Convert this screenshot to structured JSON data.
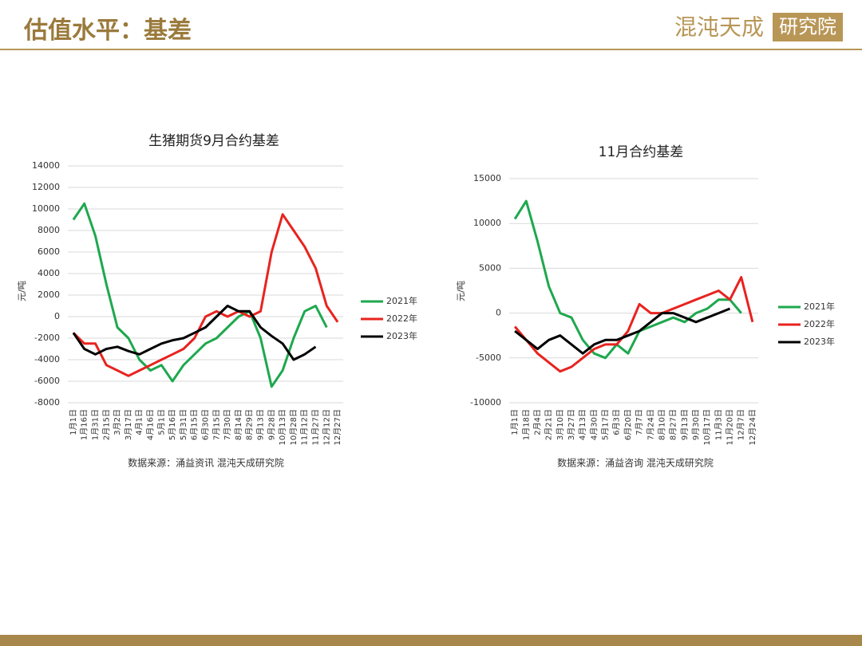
{
  "header": {
    "title": "估值水平：基差",
    "logo": [
      "混沌天成",
      "研究院"
    ]
  },
  "chart_data": [
    {
      "type": "line",
      "title": "生猪期货9月合约基差",
      "ylabel": "元/吨",
      "source": "数据来源：涌益资讯 混沌天成研究院",
      "categories": [
        "1月1日",
        "1月16日",
        "1月31日",
        "2月15日",
        "3月2日",
        "3月17日",
        "4月1日",
        "4月16日",
        "5月1日",
        "5月16日",
        "5月31日",
        "6月15日",
        "6月30日",
        "7月15日",
        "7月30日",
        "8月14日",
        "8月29日",
        "9月13日",
        "9月28日",
        "10月13日",
        "10月28日",
        "11月12日",
        "11月27日",
        "12月12日",
        "12月27日"
      ],
      "series": [
        {
          "name": "2021年",
          "color": "#1ea84e",
          "values": [
            9000,
            10500,
            7500,
            3000,
            -1000,
            -2000,
            -4000,
            -5000,
            -4500,
            -6000,
            -4500,
            -3500,
            -2500,
            -2000,
            -1000,
            0,
            500,
            -2000,
            -6500,
            -5000,
            -2000,
            500,
            1000,
            -1000,
            null
          ]
        },
        {
          "name": "2022年",
          "color": "#e8231f",
          "values": [
            -1500,
            -2500,
            -2500,
            -4500,
            -5000,
            -5500,
            -5000,
            -4500,
            -4000,
            -3500,
            -3000,
            -2000,
            0,
            500,
            0,
            500,
            0,
            500,
            6000,
            9500,
            8000,
            6500,
            4500,
            1000,
            -500
          ]
        },
        {
          "name": "2023年",
          "color": "#000000",
          "values": [
            -1500,
            -3000,
            -3500,
            -3000,
            -2800,
            -3200,
            -3500,
            -3000,
            -2500,
            -2200,
            -2000,
            -1500,
            -1000,
            0,
            1000,
            500,
            500,
            -1000,
            -1800,
            -2500,
            -4000,
            -3500,
            -2800,
            null,
            null
          ]
        }
      ],
      "ylim": [
        -8000,
        14000
      ],
      "yticks": [
        -8000,
        -6000,
        -4000,
        -2000,
        0,
        2000,
        4000,
        6000,
        8000,
        10000,
        12000,
        14000
      ],
      "grid": true,
      "legend": "right"
    },
    {
      "type": "line",
      "title": "11月合约基差",
      "ylabel": "元/吨",
      "source": "数据来源：涌益咨询 混沌天成研究院",
      "categories": [
        "1月1日",
        "1月18日",
        "2月4日",
        "2月21日",
        "3月10日",
        "3月27日",
        "4月13日",
        "4月30日",
        "5月17日",
        "6月3日",
        "6月20日",
        "7月7日",
        "7月24日",
        "8月10日",
        "8月27日",
        "9月13日",
        "9月30日",
        "10月17日",
        "11月3日",
        "11月20日",
        "12月7日",
        "12月24日"
      ],
      "series": [
        {
          "name": "2021年",
          "color": "#1ea84e",
          "values": [
            10500,
            12500,
            8000,
            3000,
            0,
            -500,
            -3000,
            -4500,
            -5000,
            -3500,
            -4500,
            -2000,
            -1500,
            -1000,
            -500,
            -1000,
            0,
            500,
            1500,
            1500,
            0,
            null
          ]
        },
        {
          "name": "2022年",
          "color": "#e8231f",
          "values": [
            -1500,
            -3000,
            -4500,
            -5500,
            -6500,
            -6000,
            -5000,
            -4000,
            -3500,
            -3500,
            -2000,
            1000,
            0,
            0,
            500,
            1000,
            1500,
            2000,
            2500,
            1500,
            4000,
            -1000
          ]
        },
        {
          "name": "2023年",
          "color": "#000000",
          "values": [
            -2000,
            -3000,
            -4000,
            -3000,
            -2500,
            -3500,
            -4500,
            -3500,
            -3000,
            -3000,
            -2500,
            -2000,
            -1000,
            0,
            0,
            -500,
            -1000,
            -500,
            0,
            500,
            null,
            null
          ]
        }
      ],
      "ylim": [
        -10000,
        15000
      ],
      "yticks": [
        -10000,
        -5000,
        0,
        5000,
        10000,
        15000
      ],
      "grid": true,
      "legend": "right"
    }
  ]
}
